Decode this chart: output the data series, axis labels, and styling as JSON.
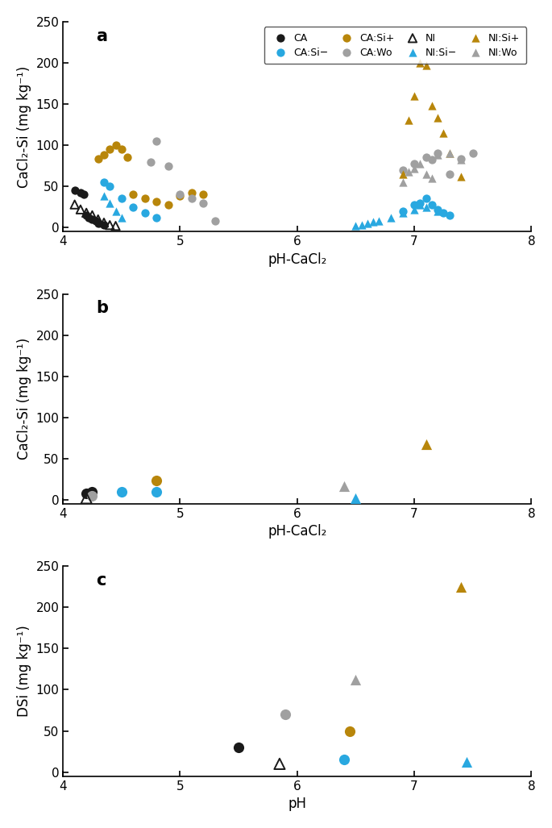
{
  "panel_a": {
    "CA": {
      "x": [
        4.1,
        4.15,
        4.18,
        4.2,
        4.22,
        4.25,
        4.28,
        4.3,
        4.35
      ],
      "y": [
        45,
        42,
        40,
        15,
        12,
        10,
        8,
        5,
        3
      ]
    },
    "CA_Sim": {
      "x": [
        4.35,
        4.4,
        4.5,
        4.6,
        4.7,
        4.8,
        6.9,
        7.0,
        7.05,
        7.1,
        7.15,
        7.2,
        7.25,
        7.3
      ],
      "y": [
        55,
        50,
        35,
        25,
        18,
        12,
        20,
        28,
        30,
        35,
        28,
        22,
        18,
        15
      ]
    },
    "CA_Sip": {
      "x": [
        4.3,
        4.35,
        4.4,
        4.45,
        4.5,
        4.55,
        4.6,
        4.7,
        4.8,
        4.9,
        5.0,
        5.1,
        5.2
      ],
      "y": [
        83,
        88,
        95,
        100,
        95,
        85,
        40,
        35,
        32,
        28,
        38,
        42,
        40
      ]
    },
    "CA_Wo": {
      "x": [
        4.75,
        4.8,
        4.9,
        5.0,
        5.1,
        5.2,
        5.3,
        6.9,
        7.0,
        7.1,
        7.15,
        7.2,
        7.3,
        7.4,
        7.5
      ],
      "y": [
        80,
        105,
        75,
        40,
        35,
        30,
        8,
        70,
        78,
        85,
        82,
        90,
        65,
        83,
        90
      ]
    },
    "NI": {
      "x": [
        4.1,
        4.15,
        4.2,
        4.25,
        4.3,
        4.35,
        4.4,
        4.45
      ],
      "y": [
        28,
        22,
        18,
        15,
        10,
        6,
        3,
        2
      ]
    },
    "NI_Sim": {
      "x": [
        4.35,
        4.4,
        4.45,
        4.5,
        6.5,
        6.55,
        6.6,
        6.65,
        6.7,
        6.8,
        6.9,
        7.0,
        7.05,
        7.1,
        7.2
      ],
      "y": [
        38,
        30,
        20,
        12,
        2,
        3,
        5,
        7,
        8,
        12,
        18,
        22,
        28,
        25,
        20
      ]
    },
    "NI_Sip": {
      "x": [
        6.9,
        6.95,
        7.0,
        7.05,
        7.1,
        7.15,
        7.2,
        7.25,
        7.3,
        7.4
      ],
      "y": [
        65,
        130,
        160,
        200,
        197,
        148,
        133,
        115,
        90,
        62
      ]
    },
    "NI_Wo": {
      "x": [
        6.9,
        6.95,
        7.0,
        7.05,
        7.1,
        7.15,
        7.2,
        7.3,
        7.4
      ],
      "y": [
        55,
        68,
        72,
        78,
        65,
        60,
        88,
        90,
        82
      ]
    }
  },
  "panel_b": {
    "CA": {
      "x": [
        4.2,
        4.25
      ],
      "y": [
        8,
        10
      ]
    },
    "CA_Sim": {
      "x": [
        4.5,
        4.8
      ],
      "y": [
        10,
        10
      ]
    },
    "CA_Sip": {
      "x": [
        4.8
      ],
      "y": [
        23
      ]
    },
    "CA_Wo": {
      "x": [
        4.25
      ],
      "y": [
        5
      ]
    },
    "NI": {
      "x": [
        4.2
      ],
      "y": [
        2
      ]
    },
    "NI_Sim": {
      "x": [
        6.5
      ],
      "y": [
        2
      ]
    },
    "NI_Sip": {
      "x": [
        7.1
      ],
      "y": [
        67
      ]
    },
    "NI_Wo": {
      "x": [
        6.4
      ],
      "y": [
        17
      ]
    }
  },
  "panel_c": {
    "CA": {
      "x": [
        5.5
      ],
      "y": [
        30
      ]
    },
    "CA_Sim": {
      "x": [
        6.4
      ],
      "y": [
        15
      ]
    },
    "CA_Sip": {
      "x": [
        6.45
      ],
      "y": [
        50
      ]
    },
    "CA_Wo": {
      "x": [
        5.9
      ],
      "y": [
        70
      ]
    },
    "NI": {
      "x": [
        5.85
      ],
      "y": [
        10
      ]
    },
    "NI_Sim": {
      "x": [
        7.45
      ],
      "y": [
        12
      ]
    },
    "NI_Sip": {
      "x": [
        7.4
      ],
      "y": [
        225
      ]
    },
    "NI_Wo": {
      "x": [
        6.5
      ],
      "y": [
        112
      ]
    }
  },
  "colors": {
    "CA": "#1a1a1a",
    "CA_Sim": "#29a8e0",
    "CA_Sip": "#b8860b",
    "CA_Wo": "#a0a0a0",
    "NI_Sim": "#29a8e0",
    "NI_Sip": "#b8860b",
    "NI_Wo": "#a0a0a0"
  },
  "ylabel_ab": "CaCl₂-Si (mg kg⁻¹)",
  "ylabel_c": "DSi (mg kg⁻¹)",
  "xlabel_ab": "pH-CaCl₂",
  "xlabel_c": "pH",
  "xlim": [
    4,
    8
  ],
  "ylim": [
    -5,
    250
  ],
  "yticks": [
    0,
    50,
    100,
    150,
    200,
    250
  ],
  "xticks": [
    4,
    5,
    6,
    7,
    8
  ]
}
